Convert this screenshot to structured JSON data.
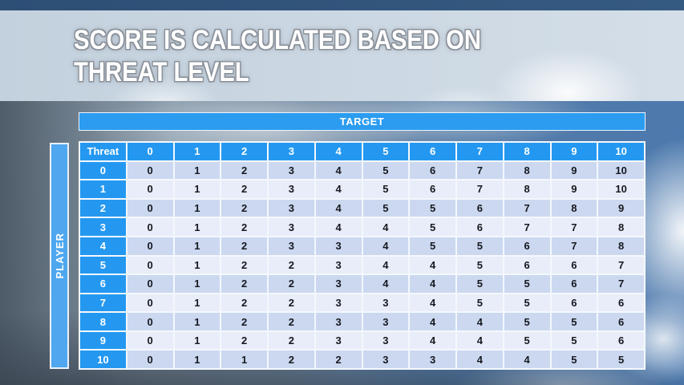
{
  "title": {
    "line1": "SCORE IS CALCULATED BASED ON",
    "line2": "THREAT LEVEL"
  },
  "matrix": {
    "target_label": "TARGET",
    "player_label": "PLAYER",
    "corner_label": "Threat",
    "column_headers": [
      "0",
      "1",
      "2",
      "3",
      "4",
      "5",
      "6",
      "7",
      "8",
      "9",
      "10"
    ],
    "rows": [
      {
        "threat": "0",
        "values": [
          0,
          1,
          2,
          3,
          4,
          5,
          6,
          7,
          8,
          9,
          10
        ]
      },
      {
        "threat": "1",
        "values": [
          0,
          1,
          2,
          3,
          4,
          5,
          6,
          7,
          8,
          9,
          10
        ]
      },
      {
        "threat": "2",
        "values": [
          0,
          1,
          2,
          3,
          4,
          5,
          5,
          6,
          7,
          8,
          9
        ]
      },
      {
        "threat": "3",
        "values": [
          0,
          1,
          2,
          3,
          4,
          4,
          5,
          6,
          7,
          7,
          8
        ]
      },
      {
        "threat": "4",
        "values": [
          0,
          1,
          2,
          3,
          3,
          4,
          5,
          5,
          6,
          7,
          8
        ]
      },
      {
        "threat": "5",
        "values": [
          0,
          1,
          2,
          2,
          3,
          4,
          4,
          5,
          6,
          6,
          7
        ]
      },
      {
        "threat": "6",
        "values": [
          0,
          1,
          2,
          2,
          3,
          4,
          4,
          5,
          5,
          6,
          7
        ]
      },
      {
        "threat": "7",
        "values": [
          0,
          1,
          2,
          2,
          3,
          3,
          4,
          5,
          5,
          6,
          6
        ]
      },
      {
        "threat": "8",
        "values": [
          0,
          1,
          2,
          2,
          3,
          3,
          4,
          4,
          5,
          5,
          6
        ]
      },
      {
        "threat": "9",
        "values": [
          0,
          1,
          2,
          2,
          3,
          3,
          4,
          4,
          5,
          5,
          6
        ]
      },
      {
        "threat": "10",
        "values": [
          0,
          1,
          1,
          2,
          2,
          3,
          3,
          4,
          4,
          5,
          5
        ]
      }
    ]
  },
  "colors": {
    "header_blue": "#2498F0",
    "player_blue": "#4FA7EF",
    "target_blue": "#2B9CF0",
    "row_dark": "#CBD8F0",
    "row_light": "#E8EDF9",
    "grid_white": "#F4F8FD",
    "title_text": "#FFFFFF",
    "body_text": "#16181F",
    "top_strip_navy": "#33567D"
  }
}
